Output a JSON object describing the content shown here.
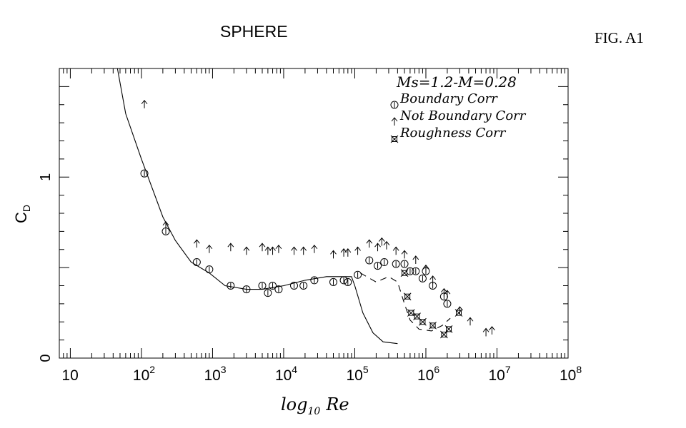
{
  "chart_data": {
    "type": "scatter",
    "title": "SPHERE",
    "figure_label": "FIG. A1",
    "xlabel_main": "log",
    "xlabel_sub": "10",
    "xlabel_var": "Re",
    "ylabel_main": "C",
    "ylabel_sub": "D",
    "legend_header": "Ms=1.2-M=0.28",
    "legend_position": "top-right",
    "x_scale": "log",
    "xlim": [
      7,
      100000000
    ],
    "ylim": [
      0,
      1.6
    ],
    "x_ticks": [
      {
        "value": 10,
        "base": "10",
        "exp": ""
      },
      {
        "value": 100,
        "base": "10",
        "exp": "2"
      },
      {
        "value": 1000,
        "base": "10",
        "exp": "3"
      },
      {
        "value": 10000,
        "base": "10",
        "exp": "4"
      },
      {
        "value": 100000,
        "base": "10",
        "exp": "5"
      },
      {
        "value": 1000000,
        "base": "10",
        "exp": "6"
      },
      {
        "value": 10000000,
        "base": "10",
        "exp": "7"
      },
      {
        "value": 100000000,
        "base": "10",
        "exp": "8"
      }
    ],
    "y_ticks": [
      {
        "value": 0,
        "label": "0"
      },
      {
        "value": 1,
        "label": "1"
      }
    ],
    "series": [
      {
        "name": "Boundary Corr",
        "marker": "circle",
        "points": [
          [
            110,
            1.02
          ],
          [
            220,
            0.7
          ],
          [
            600,
            0.53
          ],
          [
            900,
            0.49
          ],
          [
            1800,
            0.4
          ],
          [
            3000,
            0.38
          ],
          [
            5000,
            0.4
          ],
          [
            6000,
            0.36
          ],
          [
            7000,
            0.4
          ],
          [
            8500,
            0.38
          ],
          [
            14000,
            0.4
          ],
          [
            19000,
            0.4
          ],
          [
            27000,
            0.43
          ],
          [
            50000,
            0.42
          ],
          [
            70000,
            0.43
          ],
          [
            80000,
            0.42
          ],
          [
            110000,
            0.46
          ],
          [
            160000,
            0.54
          ],
          [
            210000,
            0.51
          ],
          [
            260000,
            0.53
          ],
          [
            380000,
            0.52
          ],
          [
            500000,
            0.52
          ],
          [
            600000,
            0.48
          ],
          [
            720000,
            0.48
          ],
          [
            900000,
            0.44
          ],
          [
            1000000,
            0.48
          ],
          [
            1250000,
            0.4
          ],
          [
            1800000,
            0.34
          ],
          [
            2000000,
            0.3
          ]
        ]
      },
      {
        "name": "Not Boundary Corr",
        "marker": "arrow",
        "points": [
          [
            110,
            1.4
          ],
          [
            220,
            0.73
          ],
          [
            600,
            0.63
          ],
          [
            900,
            0.6
          ],
          [
            1800,
            0.61
          ],
          [
            3000,
            0.59
          ],
          [
            5000,
            0.61
          ],
          [
            6000,
            0.59
          ],
          [
            7000,
            0.59
          ],
          [
            8500,
            0.6
          ],
          [
            14000,
            0.59
          ],
          [
            19000,
            0.59
          ],
          [
            27000,
            0.6
          ],
          [
            50000,
            0.57
          ],
          [
            70000,
            0.58
          ],
          [
            80000,
            0.58
          ],
          [
            110000,
            0.59
          ],
          [
            160000,
            0.63
          ],
          [
            210000,
            0.61
          ],
          [
            240000,
            0.64
          ],
          [
            280000,
            0.62
          ],
          [
            380000,
            0.59
          ],
          [
            500000,
            0.57
          ],
          [
            720000,
            0.54
          ],
          [
            1000000,
            0.49
          ],
          [
            1250000,
            0.43
          ],
          [
            1800000,
            0.36
          ],
          [
            2000000,
            0.35
          ],
          [
            3000000,
            0.26
          ],
          [
            4200000,
            0.2
          ],
          [
            7000000,
            0.14
          ],
          [
            8500000,
            0.15
          ]
        ]
      },
      {
        "name": "Roughness Corr",
        "marker": "cross-square",
        "points": [
          [
            500000,
            0.47
          ],
          [
            550000,
            0.34
          ],
          [
            620000,
            0.25
          ],
          [
            750000,
            0.23
          ],
          [
            900000,
            0.2
          ],
          [
            1250000,
            0.18
          ],
          [
            1800000,
            0.13
          ],
          [
            2100000,
            0.16
          ],
          [
            2900000,
            0.25
          ]
        ]
      }
    ],
    "curves": [
      {
        "style": "solid",
        "points": [
          [
            45,
            1.62
          ],
          [
            60,
            1.35
          ],
          [
            100,
            1.1
          ],
          [
            200,
            0.78
          ],
          [
            300,
            0.65
          ],
          [
            500,
            0.53
          ],
          [
            900,
            0.47
          ],
          [
            1500,
            0.4
          ],
          [
            3000,
            0.38
          ],
          [
            5000,
            0.38
          ],
          [
            10000,
            0.4
          ],
          [
            20000,
            0.43
          ],
          [
            40000,
            0.45
          ],
          [
            70000,
            0.45
          ],
          [
            90000,
            0.45
          ],
          [
            100000,
            0.4
          ],
          [
            130000,
            0.25
          ],
          [
            180000,
            0.14
          ],
          [
            250000,
            0.09
          ],
          [
            400000,
            0.08
          ]
        ]
      },
      {
        "style": "dashed",
        "points": [
          [
            120000,
            0.47
          ],
          [
            200000,
            0.42
          ],
          [
            300000,
            0.45
          ],
          [
            400000,
            0.42
          ],
          [
            500000,
            0.3
          ],
          [
            600000,
            0.21
          ],
          [
            800000,
            0.16
          ],
          [
            1200000,
            0.15
          ],
          [
            1700000,
            0.18
          ],
          [
            2200000,
            0.22
          ]
        ]
      }
    ]
  }
}
